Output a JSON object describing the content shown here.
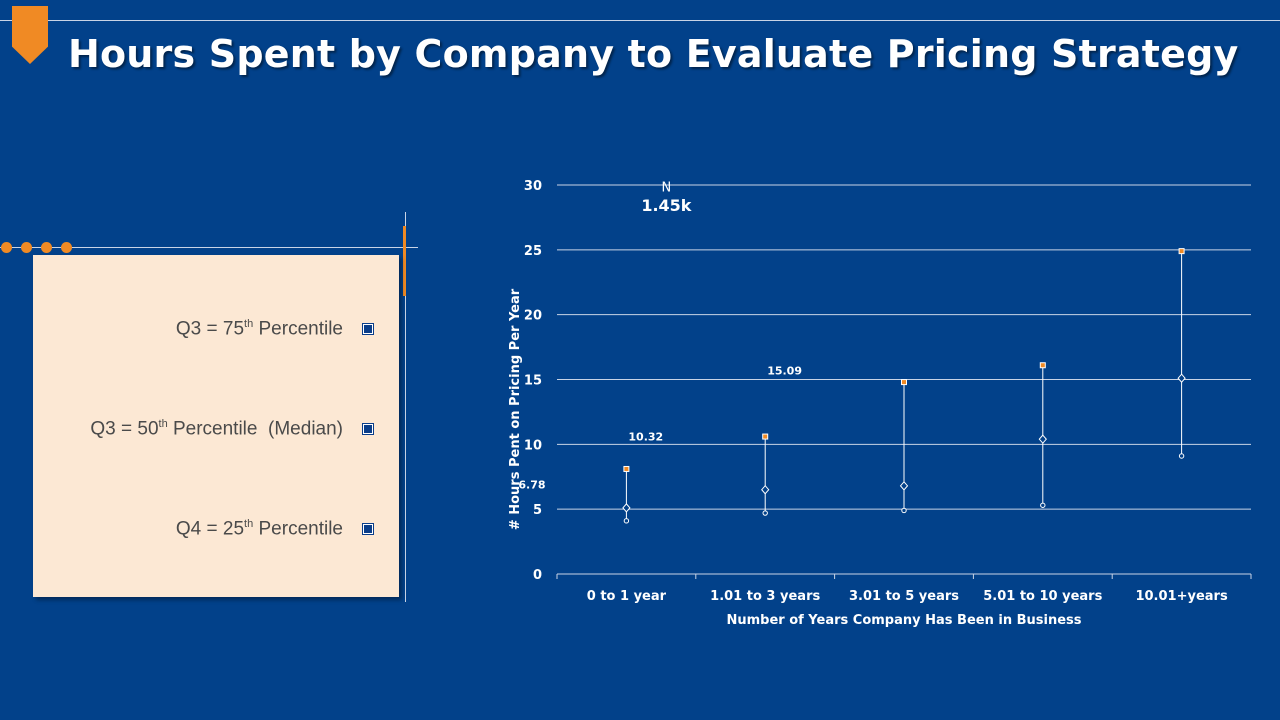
{
  "title": "Hours Spent by Company to Evaluate Pricing Strategy",
  "colors": {
    "background": "#02418a",
    "accent": "#f08a24",
    "panel": "#fce8d4",
    "grid": "#c9d4e6"
  },
  "legend": {
    "items": [
      {
        "prefix": "Q3 = 75",
        "sup": "th",
        "suffix": " Percentile"
      },
      {
        "prefix": "Q3 = 50",
        "sup": "th",
        "suffix": " Percentile  (Median)"
      },
      {
        "prefix": "Q4 = 25",
        "sup": "th",
        "suffix": " Percentile"
      }
    ]
  },
  "chart_data": {
    "type": "scatter",
    "title": "",
    "xlabel": "Number of Years Company Has Been in Business",
    "ylabel": "# Hours Pent on Pricing Per Year",
    "ylim": [
      0,
      30
    ],
    "yticks": [
      "0",
      "5",
      "10",
      "15",
      "20",
      "25",
      "30"
    ],
    "categories": [
      "0 to 1 year",
      "1.01 to 3 years",
      "3.01 to 5 years",
      "5.01 to 10 years",
      "10.01+years"
    ],
    "series": [
      {
        "name": "Q3 = 75th Percentile",
        "values": [
          8.1,
          10.6,
          14.8,
          16.1,
          24.9
        ]
      },
      {
        "name": "Q3 = 50th Percentile (Median)",
        "values": [
          5.1,
          6.5,
          6.8,
          10.4,
          15.1
        ]
      },
      {
        "name": "Q4 = 25th Percentile",
        "values": [
          4.1,
          4.7,
          4.9,
          5.3,
          9.1
        ]
      }
    ],
    "annotations": [
      {
        "text": "N",
        "x": "0 to 1 year",
        "y": 29.8
      },
      {
        "text": "1.45k",
        "x": "0 to 1 year",
        "y": 28.3
      },
      {
        "text": "10.32",
        "x": "0 to 1 year",
        "y": 10.6
      },
      {
        "text": "15.09",
        "x": "1.01 to 3 years",
        "y": 15.7
      },
      {
        "text": "6.78",
        "x": "0 to 1 year",
        "y": 6.9
      }
    ],
    "grid": true
  }
}
